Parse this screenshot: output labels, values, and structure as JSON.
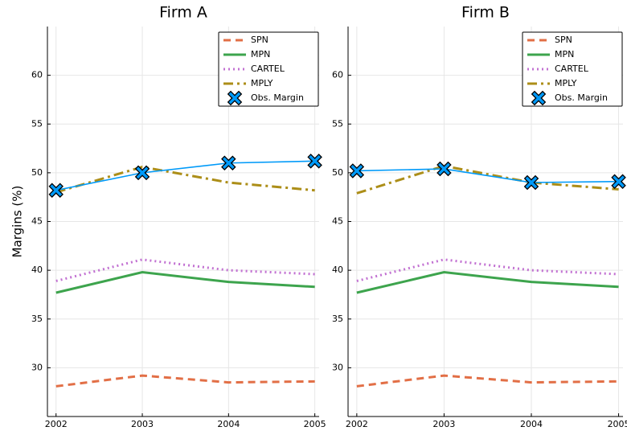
{
  "chart_data": [
    {
      "type": "line",
      "title": "Firm A",
      "y_label": "Margins (%)",
      "x": [
        2002,
        2003,
        2004,
        2005
      ],
      "xlim": [
        2001.9,
        2005.05
      ],
      "xticks": [
        2002,
        2003,
        2004,
        2005
      ],
      "ylim": [
        25,
        65
      ],
      "yticks": [
        30,
        35,
        40,
        45,
        50,
        55,
        60
      ],
      "grid": true,
      "legend": "upper right",
      "series": [
        {
          "name": "SPN",
          "color": "#e26f46",
          "dash": "dash",
          "values": [
            28.1,
            29.2,
            28.5,
            28.6
          ]
        },
        {
          "name": "MPN",
          "color": "#3da44d",
          "dash": "solid",
          "values": [
            37.7,
            39.8,
            38.8,
            38.3
          ]
        },
        {
          "name": "CARTEL",
          "color": "#c271d2",
          "dash": "dot",
          "values": [
            38.9,
            41.1,
            40.0,
            39.6
          ]
        },
        {
          "name": "MPLY",
          "color": "#ac8e18",
          "dash": "dashdot",
          "values": [
            48.0,
            50.6,
            49.0,
            48.2
          ]
        },
        {
          "name": "Obs. Margin",
          "color": "#009af9",
          "dash": "thin",
          "marker": "x",
          "values": [
            48.2,
            50.0,
            51.0,
            51.2
          ]
        }
      ]
    },
    {
      "type": "line",
      "title": "Firm B",
      "x": [
        2002,
        2003,
        2004,
        2005
      ],
      "xlim": [
        2001.9,
        2005.05
      ],
      "xticks": [
        2002,
        2003,
        2004,
        2005
      ],
      "ylim": [
        25,
        65
      ],
      "yticks": [
        30,
        35,
        40,
        45,
        50,
        55,
        60
      ],
      "grid": true,
      "legend": "upper right",
      "series": [
        {
          "name": "SPN",
          "color": "#e26f46",
          "dash": "dash",
          "values": [
            28.1,
            29.2,
            28.5,
            28.6
          ]
        },
        {
          "name": "MPN",
          "color": "#3da44d",
          "dash": "solid",
          "values": [
            37.7,
            39.8,
            38.8,
            38.3
          ]
        },
        {
          "name": "CARTEL",
          "color": "#c271d2",
          "dash": "dot",
          "values": [
            38.9,
            41.1,
            40.0,
            39.6
          ]
        },
        {
          "name": "MPLY",
          "color": "#ac8e18",
          "dash": "dashdot",
          "values": [
            47.9,
            50.7,
            49.0,
            48.3
          ]
        },
        {
          "name": "Obs. Margin",
          "color": "#009af9",
          "dash": "thin",
          "marker": "x",
          "values": [
            50.2,
            50.4,
            49.0,
            49.1
          ]
        }
      ]
    }
  ]
}
